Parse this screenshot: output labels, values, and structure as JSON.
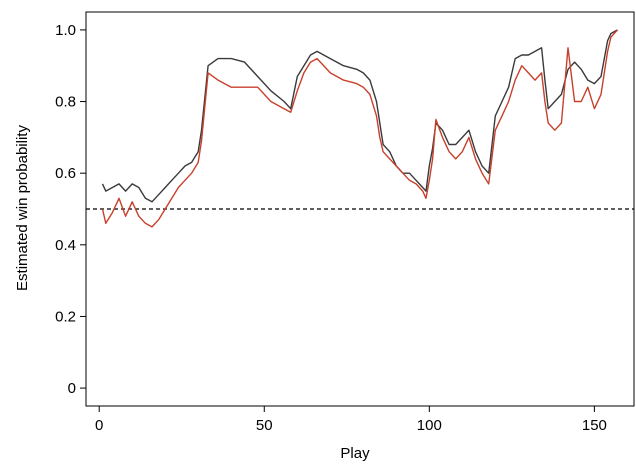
{
  "chart_data": {
    "type": "line",
    "xlabel": "Play",
    "ylabel": "Estimated win probability",
    "xlim": [
      -4,
      162
    ],
    "ylim": [
      -0.05,
      1.05
    ],
    "xticks": [
      0,
      50,
      100,
      150
    ],
    "yticks": [
      0,
      0.2,
      0.4,
      0.6,
      0.8,
      1.0
    ],
    "xtick_labels": [
      "0",
      "50",
      "100",
      "150"
    ],
    "ytick_labels": [
      "0",
      "0.2",
      "0.4",
      "0.6",
      "0.8",
      "1.0"
    ],
    "grid": false,
    "legend": "none",
    "reference_line": {
      "y": 0.5,
      "style": "dashed",
      "color": "#000000"
    },
    "series": [
      {
        "color": "#3a3a3a",
        "x": [
          1,
          2,
          4,
          6,
          8,
          10,
          12,
          14,
          16,
          18,
          20,
          22,
          24,
          26,
          28,
          30,
          31,
          33,
          36,
          40,
          44,
          48,
          52,
          56,
          58,
          60,
          62,
          64,
          66,
          70,
          74,
          78,
          80,
          82,
          84,
          85,
          86,
          88,
          90,
          92,
          94,
          96,
          98,
          99,
          100,
          101,
          102,
          104,
          106,
          108,
          110,
          112,
          114,
          116,
          118,
          120,
          122,
          124,
          126,
          128,
          130,
          132,
          134,
          135,
          136,
          138,
          140,
          142,
          144,
          146,
          148,
          150,
          152,
          154,
          155,
          157
        ],
        "values": [
          0.57,
          0.55,
          0.56,
          0.57,
          0.55,
          0.57,
          0.56,
          0.53,
          0.52,
          0.54,
          0.56,
          0.58,
          0.6,
          0.62,
          0.63,
          0.66,
          0.72,
          0.9,
          0.92,
          0.92,
          0.91,
          0.87,
          0.83,
          0.8,
          0.78,
          0.87,
          0.9,
          0.93,
          0.94,
          0.92,
          0.9,
          0.89,
          0.88,
          0.86,
          0.8,
          0.74,
          0.68,
          0.66,
          0.62,
          0.6,
          0.6,
          0.58,
          0.56,
          0.55,
          0.62,
          0.67,
          0.74,
          0.72,
          0.68,
          0.68,
          0.7,
          0.72,
          0.66,
          0.62,
          0.6,
          0.76,
          0.8,
          0.84,
          0.92,
          0.93,
          0.93,
          0.94,
          0.95,
          0.86,
          0.78,
          0.8,
          0.82,
          0.89,
          0.91,
          0.89,
          0.86,
          0.85,
          0.87,
          0.97,
          0.99,
          1.0
        ]
      },
      {
        "color": "#c8402c",
        "x": [
          1,
          2,
          4,
          6,
          8,
          10,
          12,
          14,
          16,
          18,
          20,
          22,
          24,
          26,
          28,
          30,
          31,
          33,
          36,
          40,
          44,
          48,
          52,
          56,
          58,
          60,
          62,
          64,
          66,
          70,
          74,
          78,
          80,
          82,
          84,
          85,
          86,
          88,
          90,
          92,
          94,
          96,
          98,
          99,
          100,
          101,
          102,
          104,
          106,
          108,
          110,
          112,
          114,
          116,
          118,
          120,
          122,
          124,
          126,
          128,
          130,
          132,
          134,
          135,
          136,
          138,
          140,
          142,
          144,
          146,
          148,
          150,
          152,
          154,
          155,
          157
        ],
        "values": [
          0.5,
          0.46,
          0.49,
          0.53,
          0.48,
          0.52,
          0.48,
          0.46,
          0.45,
          0.47,
          0.5,
          0.53,
          0.56,
          0.58,
          0.6,
          0.63,
          0.69,
          0.88,
          0.86,
          0.84,
          0.84,
          0.84,
          0.8,
          0.78,
          0.77,
          0.83,
          0.88,
          0.91,
          0.92,
          0.88,
          0.86,
          0.85,
          0.84,
          0.82,
          0.76,
          0.7,
          0.66,
          0.64,
          0.62,
          0.6,
          0.58,
          0.57,
          0.55,
          0.53,
          0.58,
          0.64,
          0.75,
          0.7,
          0.66,
          0.64,
          0.66,
          0.7,
          0.64,
          0.6,
          0.57,
          0.72,
          0.76,
          0.8,
          0.86,
          0.9,
          0.88,
          0.86,
          0.88,
          0.8,
          0.74,
          0.72,
          0.74,
          0.95,
          0.8,
          0.8,
          0.84,
          0.78,
          0.82,
          0.94,
          0.98,
          1.0
        ]
      }
    ]
  }
}
